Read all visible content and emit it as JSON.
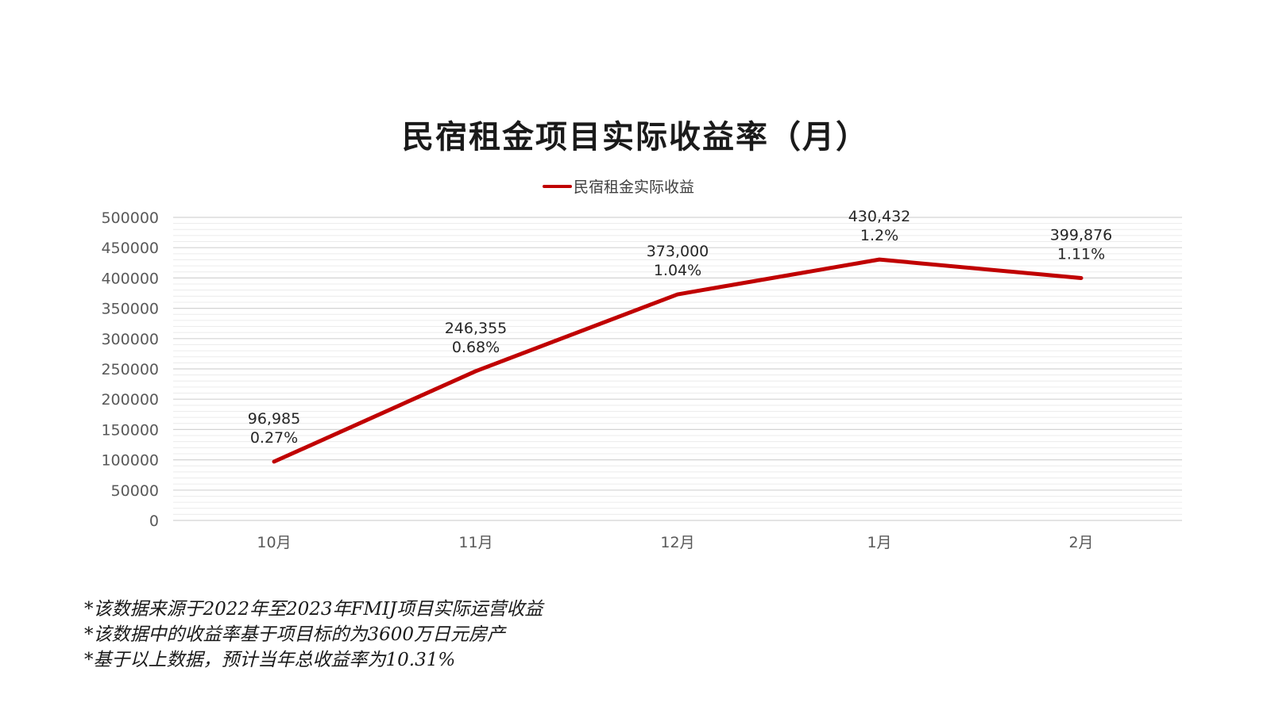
{
  "chart_data": {
    "type": "line",
    "title": "民宿租金项目实际收益率（月）",
    "categories": [
      "10月",
      "11月",
      "12月",
      "1月",
      "2月"
    ],
    "series": [
      {
        "name": "民宿租金实际收益",
        "values": [
          96985,
          246355,
          373000,
          430432,
          399876
        ],
        "labels": [
          "96,985",
          "246,355",
          "373,000",
          "430,432",
          "399,876"
        ],
        "rates": [
          "0.27%",
          "0.68%",
          "1.04%",
          "1.2%",
          "1.11%"
        ]
      }
    ],
    "ylim": [
      0,
      500000
    ],
    "yticks": [
      0,
      50000,
      100000,
      150000,
      200000,
      250000,
      300000,
      350000,
      400000,
      450000,
      500000
    ],
    "ytick_labels": [
      "0",
      "50000",
      "100000",
      "150000",
      "200000",
      "250000",
      "300000",
      "350000",
      "400000",
      "450000",
      "500000"
    ],
    "grid": true,
    "legend_position": "top-center",
    "line_color": "#c00000"
  },
  "notes": [
    "*该数据来源于2022年至2023年FMIJ项目实际运营收益",
    "*该数据中的收益率基于项目标的为3600万日元房产",
    "*基于以上数据，预计当年总收益率为10.31%"
  ]
}
